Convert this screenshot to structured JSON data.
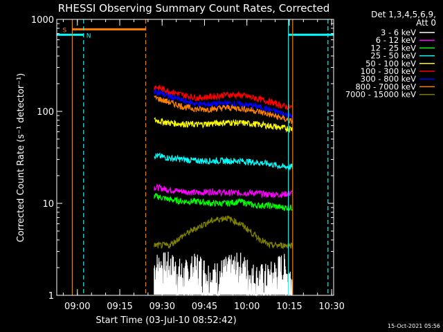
{
  "chart_data": {
    "type": "line",
    "title": "RHESSI Observing Summary Count Rates, Corrected",
    "xlabel": "Start Time (03-Jul-10 08:52:42)",
    "ylabel": "Corrected Count Rate (s⁻¹ detector⁻¹)",
    "yscale": "log",
    "ylim": [
      1,
      1000
    ],
    "xlim_minutes": [
      0,
      98
    ],
    "x_ticks": [
      {
        "label": "09:00",
        "t": 7.3
      },
      {
        "label": "09:15",
        "t": 22.3
      },
      {
        "label": "09:30",
        "t": 37.3
      },
      {
        "label": "09:45",
        "t": 52.3
      },
      {
        "label": "10:00",
        "t": 67.3
      },
      {
        "label": "10:15",
        "t": 82.3
      },
      {
        "label": "10:30",
        "t": 97.3
      }
    ],
    "y_ticks": [
      {
        "label": "1",
        "v": 1
      },
      {
        "label": "10",
        "v": 10
      },
      {
        "label": "100",
        "v": 100
      },
      {
        "label": "1000",
        "v": 1000
      }
    ],
    "legend_header": [
      "Det 1,3,4,5,6,9,",
      "Att 0"
    ],
    "data_range_minutes": [
      34.5,
      83.5
    ],
    "series": [
      {
        "name": "3 - 6 keV",
        "color": "#ffffff",
        "noisy": true,
        "x": [
          35,
          40,
          45,
          50,
          55,
          60,
          65,
          70,
          75,
          80,
          83
        ],
        "y": [
          2,
          2,
          1.6,
          2,
          1.5,
          1.8,
          2,
          1.5,
          1.5,
          2,
          1.5
        ]
      },
      {
        "name": "6 - 12 keV",
        "color": "#ff00ff",
        "noisy": false,
        "x": [
          35,
          40,
          45,
          50,
          55,
          60,
          65,
          70,
          75,
          80,
          83
        ],
        "y": [
          15,
          14,
          13.5,
          13,
          13.5,
          13,
          13,
          13,
          12.5,
          12.5,
          13
        ]
      },
      {
        "name": "12 - 25 keV",
        "color": "#00ff00",
        "noisy": false,
        "x": [
          35,
          40,
          45,
          50,
          55,
          60,
          65,
          70,
          75,
          80,
          83
        ],
        "y": [
          12,
          11,
          10.5,
          10.5,
          10,
          10,
          10.5,
          9.5,
          9.5,
          9,
          9
        ]
      },
      {
        "name": "25 - 50 keV",
        "color": "#00ffff",
        "noisy": false,
        "x": [
          35,
          40,
          45,
          50,
          55,
          60,
          65,
          70,
          75,
          80,
          83
        ],
        "y": [
          33,
          31,
          30,
          29,
          29,
          29,
          29,
          28,
          27,
          25,
          25
        ]
      },
      {
        "name": "50 - 100 keV",
        "color": "#ffff00",
        "noisy": false,
        "x": [
          35,
          40,
          45,
          50,
          55,
          60,
          65,
          70,
          75,
          80,
          83
        ],
        "y": [
          80,
          75,
          73,
          72,
          74,
          76,
          75,
          73,
          70,
          66,
          65
        ]
      },
      {
        "name": "100 - 300 keV",
        "color": "#ff0000",
        "noisy": false,
        "x": [
          35,
          40,
          45,
          50,
          55,
          60,
          65,
          70,
          75,
          80,
          83
        ],
        "y": [
          185,
          165,
          150,
          140,
          145,
          152,
          150,
          140,
          128,
          115,
          110
        ]
      },
      {
        "name": "300 - 800 keV",
        "color": "#0000ff",
        "noisy": false,
        "x": [
          35,
          40,
          45,
          50,
          55,
          60,
          65,
          70,
          75,
          80,
          83
        ],
        "y": [
          165,
          145,
          130,
          120,
          120,
          122,
          120,
          115,
          105,
          95,
          88
        ]
      },
      {
        "name": "800 - 7000 keV",
        "color": "#ff8000",
        "noisy": false,
        "x": [
          35,
          40,
          45,
          50,
          55,
          60,
          65,
          70,
          75,
          80,
          83
        ],
        "y": [
          140,
          125,
          112,
          105,
          106,
          110,
          108,
          102,
          93,
          84,
          78
        ]
      },
      {
        "name": "7000 - 15000 keV",
        "color": "#808000",
        "noisy": false,
        "x": [
          35,
          40,
          45,
          50,
          55,
          60,
          65,
          70,
          75,
          80,
          83
        ],
        "y": [
          3.5,
          3.5,
          4.5,
          5.5,
          6.5,
          7,
          6,
          4.5,
          3.5,
          3.5,
          3.5
        ]
      }
    ],
    "annotations": {
      "saa_bar": {
        "label": "S",
        "x0": 5.5,
        "x1": 31.5,
        "v": 780,
        "color": "#ff8000"
      },
      "night_bar": {
        "label": "N",
        "x0": 0,
        "x1": 9.5,
        "v": 680,
        "color": "#00ffff"
      },
      "night_bar2": {
        "x0": 82.0,
        "x1": 98,
        "v": 680,
        "color": "#00ffff"
      },
      "vlines": [
        {
          "t": 5.5,
          "color": "#ff8000",
          "dash": false
        },
        {
          "t": 9.5,
          "color": "#00ffff",
          "dash": true
        },
        {
          "t": 31.5,
          "color": "#ff8000",
          "dash": true
        },
        {
          "t": 82.0,
          "color": "#00ffff",
          "dash": false
        },
        {
          "t": 83.5,
          "color": "#ff8000",
          "dash": false
        },
        {
          "t": 96.0,
          "color": "#00ffff",
          "dash": true
        }
      ]
    },
    "timestamp": "15-Oct-2021 05:56"
  }
}
